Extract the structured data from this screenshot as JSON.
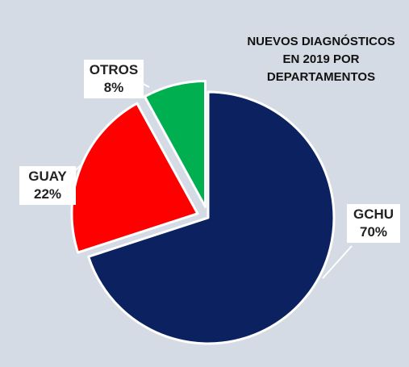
{
  "chart_data": {
    "type": "pie",
    "title_lines": [
      "NUEVOS DIAGNÓSTICOS",
      "EN 2019 POR",
      "DEPARTAMENTOS"
    ],
    "slices": [
      {
        "label": "GCHU",
        "value": 70,
        "value_label": "70%",
        "color": "#0b2160",
        "exploded": false
      },
      {
        "label": "GUAY",
        "value": 22,
        "value_label": "22%",
        "color": "#ff0000",
        "exploded": true
      },
      {
        "label": "OTROS",
        "value": 8,
        "value_label": "8%",
        "color": "#00b050",
        "exploded": true
      }
    ],
    "start_angle_deg": 0,
    "direction": "clockwise"
  }
}
